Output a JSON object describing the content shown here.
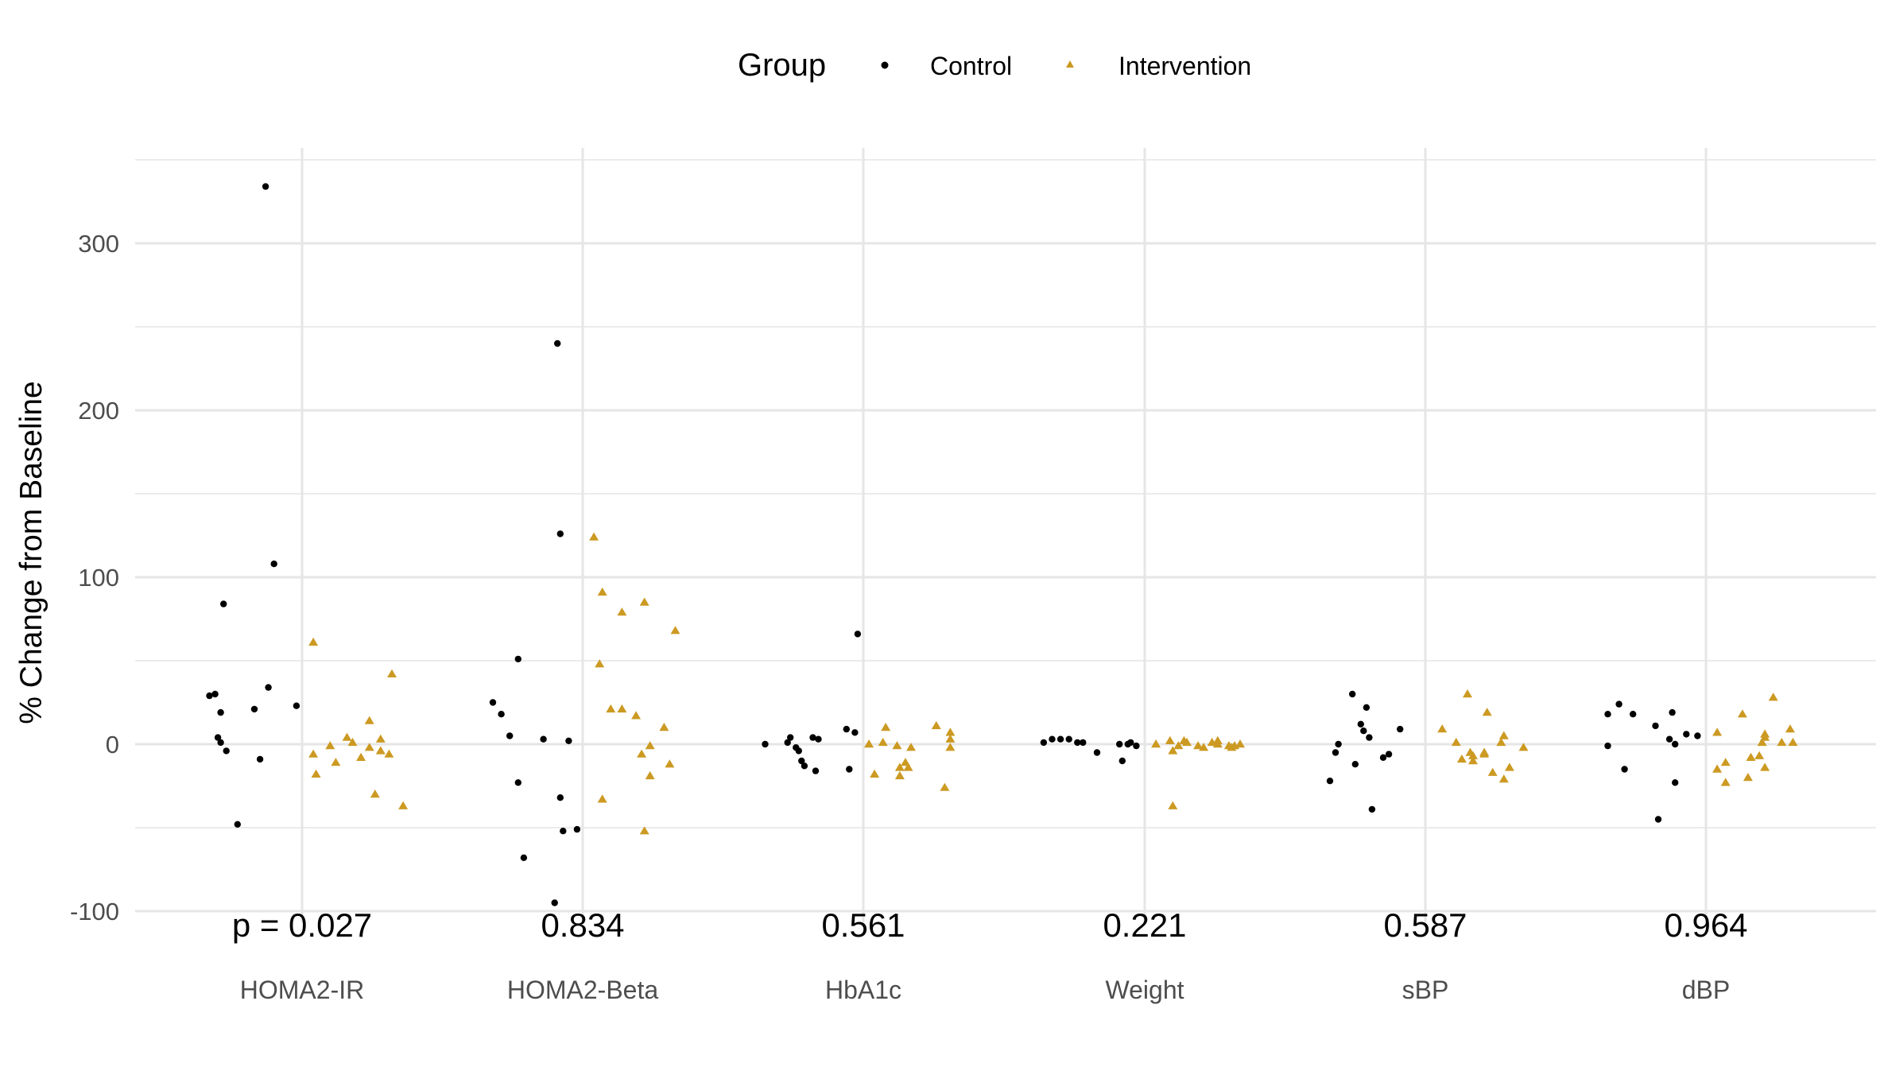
{
  "chart_data": {
    "type": "scatter",
    "ylabel": "% Change from Baseline",
    "xlabel": "",
    "ylim": [
      -100,
      350
    ],
    "yticks": [
      -100,
      0,
      100,
      200,
      300
    ],
    "grid": true,
    "legend": {
      "title": "Group",
      "placement": "top",
      "entries": [
        "Control",
        "Intervention"
      ]
    },
    "categories": [
      "HOMA2-IR",
      "HOMA2-Beta",
      "HbA1c",
      "Weight",
      "sBP",
      "dBP"
    ],
    "pvalues": [
      "p = 0.027",
      "0.834",
      "0.561",
      "0.221",
      "0.587",
      "0.964"
    ],
    "series": [
      {
        "name": "Control",
        "color": "#000000",
        "marker": "circle",
        "points": [
          {
            "category": "HOMA2-IR",
            "x": -0.33,
            "y": 29
          },
          {
            "category": "HOMA2-IR",
            "x": -0.31,
            "y": 30
          },
          {
            "category": "HOMA2-IR",
            "x": -0.3,
            "y": 4
          },
          {
            "category": "HOMA2-IR",
            "x": -0.29,
            "y": 1
          },
          {
            "category": "HOMA2-IR",
            "x": -0.29,
            "y": 19
          },
          {
            "category": "HOMA2-IR",
            "x": -0.28,
            "y": 84
          },
          {
            "category": "HOMA2-IR",
            "x": -0.27,
            "y": -4
          },
          {
            "category": "HOMA2-IR",
            "x": -0.23,
            "y": -48
          },
          {
            "category": "HOMA2-IR",
            "x": -0.17,
            "y": 21
          },
          {
            "category": "HOMA2-IR",
            "x": -0.15,
            "y": -9
          },
          {
            "category": "HOMA2-IR",
            "x": -0.13,
            "y": 334
          },
          {
            "category": "HOMA2-IR",
            "x": -0.12,
            "y": 34
          },
          {
            "category": "HOMA2-IR",
            "x": -0.1,
            "y": 108
          },
          {
            "category": "HOMA2-IR",
            "x": -0.02,
            "y": 23
          },
          {
            "category": "HOMA2-Beta",
            "x": -0.32,
            "y": 25
          },
          {
            "category": "HOMA2-Beta",
            "x": -0.29,
            "y": 18
          },
          {
            "category": "HOMA2-Beta",
            "x": -0.26,
            "y": 5
          },
          {
            "category": "HOMA2-Beta",
            "x": -0.23,
            "y": -23
          },
          {
            "category": "HOMA2-Beta",
            "x": -0.23,
            "y": 51
          },
          {
            "category": "HOMA2-Beta",
            "x": -0.21,
            "y": -68
          },
          {
            "category": "HOMA2-Beta",
            "x": -0.14,
            "y": 3
          },
          {
            "category": "HOMA2-Beta",
            "x": -0.1,
            "y": -95
          },
          {
            "category": "HOMA2-Beta",
            "x": -0.09,
            "y": 240
          },
          {
            "category": "HOMA2-Beta",
            "x": -0.08,
            "y": 126
          },
          {
            "category": "HOMA2-Beta",
            "x": -0.08,
            "y": -32
          },
          {
            "category": "HOMA2-Beta",
            "x": -0.07,
            "y": -52
          },
          {
            "category": "HOMA2-Beta",
            "x": -0.05,
            "y": 2
          },
          {
            "category": "HOMA2-Beta",
            "x": -0.02,
            "y": -51
          },
          {
            "category": "HbA1c",
            "x": -0.35,
            "y": 0
          },
          {
            "category": "HbA1c",
            "x": -0.27,
            "y": 1
          },
          {
            "category": "HbA1c",
            "x": -0.26,
            "y": 4
          },
          {
            "category": "HbA1c",
            "x": -0.24,
            "y": -2
          },
          {
            "category": "HbA1c",
            "x": -0.23,
            "y": -4
          },
          {
            "category": "HbA1c",
            "x": -0.22,
            "y": -10
          },
          {
            "category": "HbA1c",
            "x": -0.21,
            "y": -13
          },
          {
            "category": "HbA1c",
            "x": -0.18,
            "y": 4
          },
          {
            "category": "HbA1c",
            "x": -0.17,
            "y": -16
          },
          {
            "category": "HbA1c",
            "x": -0.16,
            "y": 3
          },
          {
            "category": "HbA1c",
            "x": -0.06,
            "y": 9
          },
          {
            "category": "HbA1c",
            "x": -0.05,
            "y": -15
          },
          {
            "category": "HbA1c",
            "x": -0.03,
            "y": 7
          },
          {
            "category": "HbA1c",
            "x": -0.02,
            "y": 66
          },
          {
            "category": "Weight",
            "x": -0.36,
            "y": 1
          },
          {
            "category": "Weight",
            "x": -0.33,
            "y": 3
          },
          {
            "category": "Weight",
            "x": -0.3,
            "y": 3
          },
          {
            "category": "Weight",
            "x": -0.27,
            "y": 3
          },
          {
            "category": "Weight",
            "x": -0.24,
            "y": 1
          },
          {
            "category": "Weight",
            "x": -0.22,
            "y": 1
          },
          {
            "category": "Weight",
            "x": -0.17,
            "y": -5
          },
          {
            "category": "Weight",
            "x": -0.09,
            "y": 0
          },
          {
            "category": "Weight",
            "x": -0.08,
            "y": -10
          },
          {
            "category": "Weight",
            "x": -0.06,
            "y": 0
          },
          {
            "category": "Weight",
            "x": -0.05,
            "y": 1
          },
          {
            "category": "Weight",
            "x": -0.03,
            "y": -1
          },
          {
            "category": "sBP",
            "x": -0.34,
            "y": -22
          },
          {
            "category": "sBP",
            "x": -0.32,
            "y": -5
          },
          {
            "category": "sBP",
            "x": -0.31,
            "y": 0
          },
          {
            "category": "sBP",
            "x": -0.26,
            "y": 30
          },
          {
            "category": "sBP",
            "x": -0.25,
            "y": -12
          },
          {
            "category": "sBP",
            "x": -0.23,
            "y": 12
          },
          {
            "category": "sBP",
            "x": -0.22,
            "y": 8
          },
          {
            "category": "sBP",
            "x": -0.21,
            "y": 22
          },
          {
            "category": "sBP",
            "x": -0.2,
            "y": 4
          },
          {
            "category": "sBP",
            "x": -0.19,
            "y": -39
          },
          {
            "category": "sBP",
            "x": -0.15,
            "y": -8
          },
          {
            "category": "sBP",
            "x": -0.13,
            "y": -6
          },
          {
            "category": "sBP",
            "x": -0.09,
            "y": 9
          },
          {
            "category": "dBP",
            "x": -0.35,
            "y": -1
          },
          {
            "category": "dBP",
            "x": -0.35,
            "y": 18
          },
          {
            "category": "dBP",
            "x": -0.31,
            "y": 24
          },
          {
            "category": "dBP",
            "x": -0.29,
            "y": -15
          },
          {
            "category": "dBP",
            "x": -0.26,
            "y": 18
          },
          {
            "category": "dBP",
            "x": -0.18,
            "y": 11
          },
          {
            "category": "dBP",
            "x": -0.17,
            "y": -45
          },
          {
            "category": "dBP",
            "x": -0.13,
            "y": 3
          },
          {
            "category": "dBP",
            "x": -0.12,
            "y": 19
          },
          {
            "category": "dBP",
            "x": -0.11,
            "y": 0
          },
          {
            "category": "dBP",
            "x": -0.11,
            "y": -23
          },
          {
            "category": "dBP",
            "x": -0.07,
            "y": 6
          },
          {
            "category": "dBP",
            "x": -0.03,
            "y": 5
          }
        ]
      },
      {
        "name": "Intervention",
        "color": "#CC9A22",
        "marker": "triangle",
        "points": [
          {
            "category": "HOMA2-IR",
            "x": 0.04,
            "y": 61
          },
          {
            "category": "HOMA2-IR",
            "x": 0.04,
            "y": -6
          },
          {
            "category": "HOMA2-IR",
            "x": 0.05,
            "y": -18
          },
          {
            "category": "HOMA2-IR",
            "x": 0.1,
            "y": -1
          },
          {
            "category": "HOMA2-IR",
            "x": 0.12,
            "y": -11
          },
          {
            "category": "HOMA2-IR",
            "x": 0.16,
            "y": 4
          },
          {
            "category": "HOMA2-IR",
            "x": 0.18,
            "y": 1
          },
          {
            "category": "HOMA2-IR",
            "x": 0.21,
            "y": -8
          },
          {
            "category": "HOMA2-IR",
            "x": 0.24,
            "y": 14
          },
          {
            "category": "HOMA2-IR",
            "x": 0.24,
            "y": -2
          },
          {
            "category": "HOMA2-IR",
            "x": 0.26,
            "y": -30
          },
          {
            "category": "HOMA2-IR",
            "x": 0.28,
            "y": 3
          },
          {
            "category": "HOMA2-IR",
            "x": 0.28,
            "y": -4
          },
          {
            "category": "HOMA2-IR",
            "x": 0.31,
            "y": -6
          },
          {
            "category": "HOMA2-IR",
            "x": 0.32,
            "y": 42
          },
          {
            "category": "HOMA2-IR",
            "x": 0.36,
            "y": -37
          },
          {
            "category": "HOMA2-Beta",
            "x": 0.04,
            "y": 124
          },
          {
            "category": "HOMA2-Beta",
            "x": 0.06,
            "y": 48
          },
          {
            "category": "HOMA2-Beta",
            "x": 0.07,
            "y": -33
          },
          {
            "category": "HOMA2-Beta",
            "x": 0.07,
            "y": 91
          },
          {
            "category": "HOMA2-Beta",
            "x": 0.1,
            "y": 21
          },
          {
            "category": "HOMA2-Beta",
            "x": 0.14,
            "y": 21
          },
          {
            "category": "HOMA2-Beta",
            "x": 0.14,
            "y": 79
          },
          {
            "category": "HOMA2-Beta",
            "x": 0.19,
            "y": 17
          },
          {
            "category": "HOMA2-Beta",
            "x": 0.21,
            "y": -6
          },
          {
            "category": "HOMA2-Beta",
            "x": 0.22,
            "y": 85
          },
          {
            "category": "HOMA2-Beta",
            "x": 0.22,
            "y": -52
          },
          {
            "category": "HOMA2-Beta",
            "x": 0.24,
            "y": -1
          },
          {
            "category": "HOMA2-Beta",
            "x": 0.24,
            "y": -19
          },
          {
            "category": "HOMA2-Beta",
            "x": 0.29,
            "y": 10
          },
          {
            "category": "HOMA2-Beta",
            "x": 0.31,
            "y": -12
          },
          {
            "category": "HOMA2-Beta",
            "x": 0.33,
            "y": 68
          },
          {
            "category": "HbA1c",
            "x": 0.02,
            "y": 0
          },
          {
            "category": "HbA1c",
            "x": 0.04,
            "y": -18
          },
          {
            "category": "HbA1c",
            "x": 0.07,
            "y": 1
          },
          {
            "category": "HbA1c",
            "x": 0.08,
            "y": 10
          },
          {
            "category": "HbA1c",
            "x": 0.12,
            "y": -1
          },
          {
            "category": "HbA1c",
            "x": 0.13,
            "y": -14
          },
          {
            "category": "HbA1c",
            "x": 0.13,
            "y": -19
          },
          {
            "category": "HbA1c",
            "x": 0.15,
            "y": -11
          },
          {
            "category": "HbA1c",
            "x": 0.16,
            "y": -14
          },
          {
            "category": "HbA1c",
            "x": 0.17,
            "y": -2
          },
          {
            "category": "HbA1c",
            "x": 0.26,
            "y": 11
          },
          {
            "category": "HbA1c",
            "x": 0.29,
            "y": -26
          },
          {
            "category": "HbA1c",
            "x": 0.31,
            "y": -2
          },
          {
            "category": "HbA1c",
            "x": 0.31,
            "y": 3
          },
          {
            "category": "HbA1c",
            "x": 0.31,
            "y": 7
          },
          {
            "category": "Weight",
            "x": 0.04,
            "y": 0
          },
          {
            "category": "Weight",
            "x": 0.09,
            "y": 2
          },
          {
            "category": "Weight",
            "x": 0.1,
            "y": -37
          },
          {
            "category": "Weight",
            "x": 0.1,
            "y": -4
          },
          {
            "category": "Weight",
            "x": 0.12,
            "y": -1
          },
          {
            "category": "Weight",
            "x": 0.14,
            "y": 2
          },
          {
            "category": "Weight",
            "x": 0.15,
            "y": 1
          },
          {
            "category": "Weight",
            "x": 0.19,
            "y": -1
          },
          {
            "category": "Weight",
            "x": 0.21,
            "y": -2
          },
          {
            "category": "Weight",
            "x": 0.24,
            "y": 1
          },
          {
            "category": "Weight",
            "x": 0.26,
            "y": 2
          },
          {
            "category": "Weight",
            "x": 0.26,
            "y": 0
          },
          {
            "category": "Weight",
            "x": 0.3,
            "y": -1
          },
          {
            "category": "Weight",
            "x": 0.31,
            "y": -2
          },
          {
            "category": "Weight",
            "x": 0.32,
            "y": -1
          },
          {
            "category": "Weight",
            "x": 0.34,
            "y": 0
          },
          {
            "category": "sBP",
            "x": 0.06,
            "y": 9
          },
          {
            "category": "sBP",
            "x": 0.11,
            "y": 1
          },
          {
            "category": "sBP",
            "x": 0.13,
            "y": -9
          },
          {
            "category": "sBP",
            "x": 0.15,
            "y": 30
          },
          {
            "category": "sBP",
            "x": 0.16,
            "y": -5
          },
          {
            "category": "sBP",
            "x": 0.17,
            "y": -10
          },
          {
            "category": "sBP",
            "x": 0.17,
            "y": -7
          },
          {
            "category": "sBP",
            "x": 0.21,
            "y": -6
          },
          {
            "category": "sBP",
            "x": 0.21,
            "y": -5
          },
          {
            "category": "sBP",
            "x": 0.22,
            "y": 19
          },
          {
            "category": "sBP",
            "x": 0.24,
            "y": -17
          },
          {
            "category": "sBP",
            "x": 0.27,
            "y": 1
          },
          {
            "category": "sBP",
            "x": 0.28,
            "y": -21
          },
          {
            "category": "sBP",
            "x": 0.28,
            "y": 5
          },
          {
            "category": "sBP",
            "x": 0.3,
            "y": -14
          },
          {
            "category": "sBP",
            "x": 0.35,
            "y": -2
          },
          {
            "category": "dBP",
            "x": 0.04,
            "y": 7
          },
          {
            "category": "dBP",
            "x": 0.04,
            "y": -15
          },
          {
            "category": "dBP",
            "x": 0.07,
            "y": -23
          },
          {
            "category": "dBP",
            "x": 0.07,
            "y": -11
          },
          {
            "category": "dBP",
            "x": 0.13,
            "y": 18
          },
          {
            "category": "dBP",
            "x": 0.15,
            "y": -20
          },
          {
            "category": "dBP",
            "x": 0.16,
            "y": -8
          },
          {
            "category": "dBP",
            "x": 0.19,
            "y": -7
          },
          {
            "category": "dBP",
            "x": 0.2,
            "y": 1
          },
          {
            "category": "dBP",
            "x": 0.21,
            "y": -14
          },
          {
            "category": "dBP",
            "x": 0.21,
            "y": 6
          },
          {
            "category": "dBP",
            "x": 0.21,
            "y": 4
          },
          {
            "category": "dBP",
            "x": 0.24,
            "y": 28
          },
          {
            "category": "dBP",
            "x": 0.27,
            "y": 1
          },
          {
            "category": "dBP",
            "x": 0.3,
            "y": 9
          },
          {
            "category": "dBP",
            "x": 0.31,
            "y": 1
          }
        ]
      }
    ]
  }
}
